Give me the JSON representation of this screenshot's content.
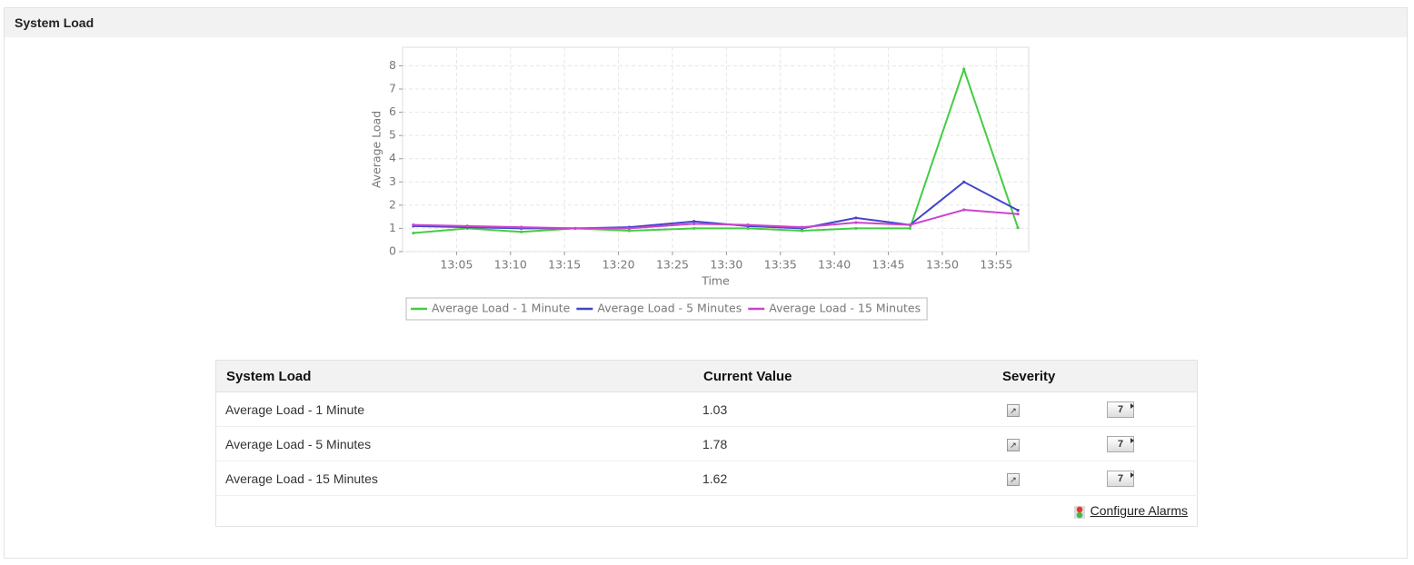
{
  "header": {
    "title": "System Load"
  },
  "chart_data": {
    "type": "line",
    "x_label": "Time",
    "y_label": "Average Load",
    "x": [
      "13:01",
      "13:06",
      "13:11",
      "13:16",
      "13:21",
      "13:27",
      "13:32",
      "13:37",
      "13:42",
      "13:47",
      "13:52",
      "13:57"
    ],
    "series": [
      {
        "name": "Average Load - 1 Minute",
        "color": "#44cc44",
        "values": [
          0.8,
          1.0,
          0.85,
          1.0,
          0.9,
          1.0,
          1.0,
          0.9,
          1.0,
          1.0,
          7.85,
          1.03
        ]
      },
      {
        "name": "Average Load - 5 Minutes",
        "color": "#4444cc",
        "values": [
          1.1,
          1.05,
          1.0,
          1.0,
          1.05,
          1.3,
          1.1,
          1.0,
          1.45,
          1.15,
          3.0,
          1.78
        ]
      },
      {
        "name": "Average Load - 15 Minutes",
        "color": "#cc44cc",
        "values": [
          1.15,
          1.1,
          1.05,
          1.0,
          1.0,
          1.2,
          1.15,
          1.05,
          1.25,
          1.15,
          1.8,
          1.62
        ]
      }
    ],
    "xlim": [
      "13:00",
      "13:58"
    ],
    "xticks": [
      "13:05",
      "13:10",
      "13:15",
      "13:20",
      "13:25",
      "13:30",
      "13:35",
      "13:40",
      "13:45",
      "13:50",
      "13:55"
    ],
    "ylim": [
      0,
      8.8
    ],
    "yticks": [
      0,
      1,
      2,
      3,
      4,
      5,
      6,
      7,
      8
    ],
    "grid": true
  },
  "table": {
    "columns": [
      "System Load",
      "Current Value",
      "Severity"
    ],
    "rows": [
      [
        "Average Load - 1 Minute",
        "1.03"
      ],
      [
        "Average Load - 5 Minutes",
        "1.78"
      ],
      [
        "Average Load - 15 Minutes",
        "1.62"
      ]
    ],
    "footer_link": "Configure Alarms"
  }
}
